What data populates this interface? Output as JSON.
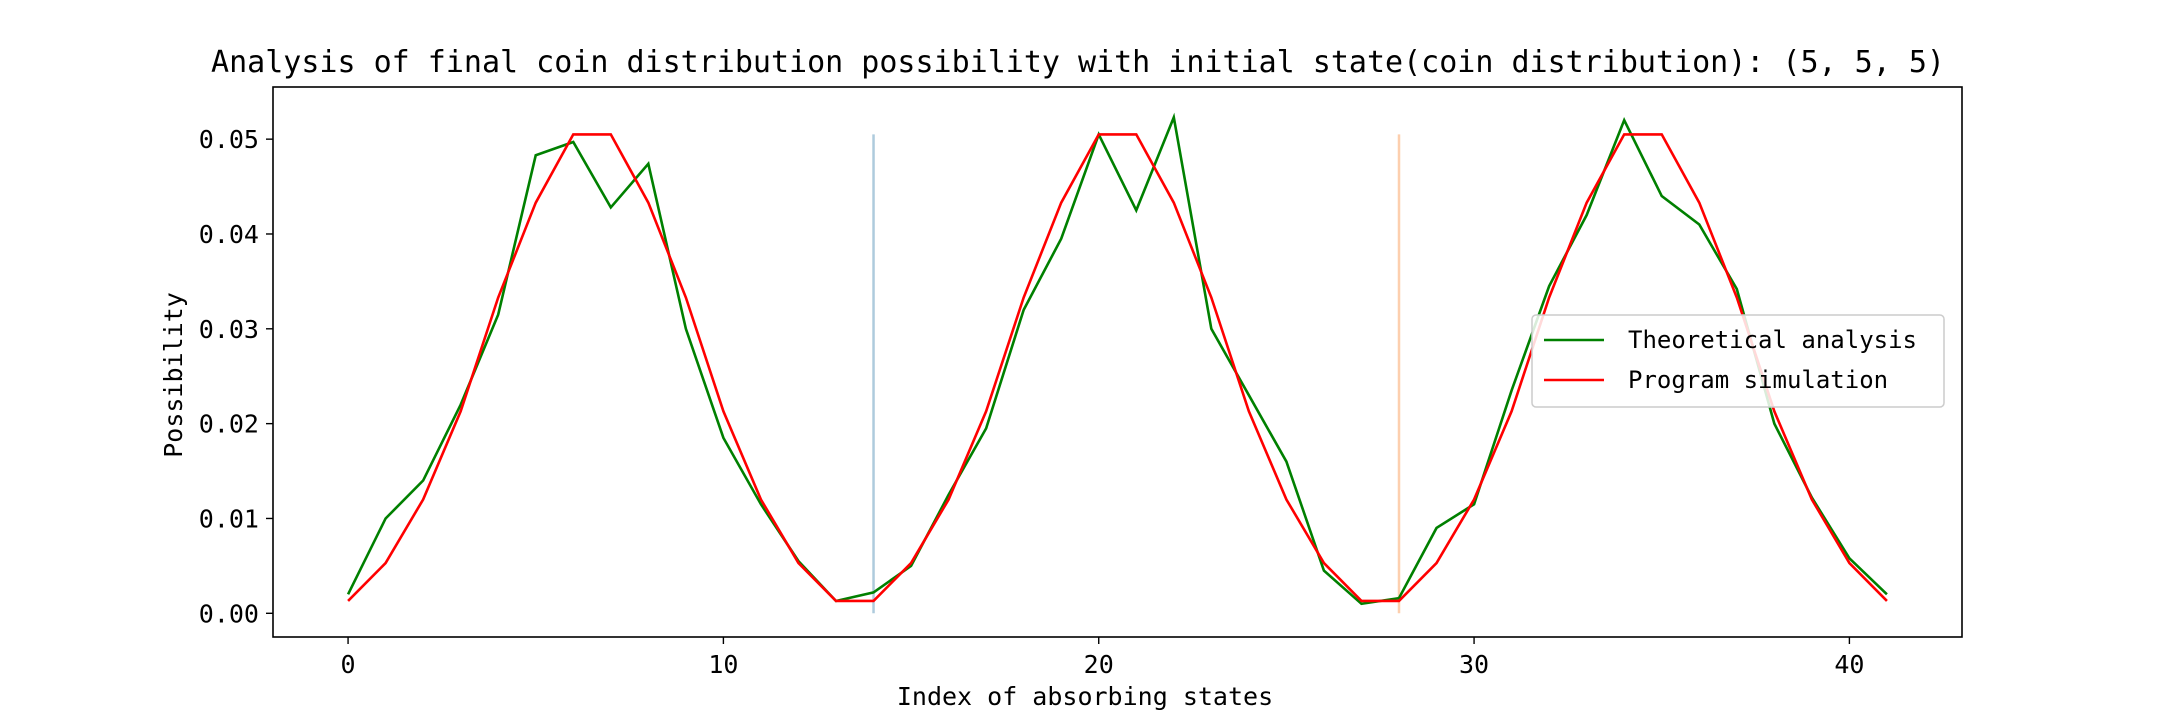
{
  "chart_data": {
    "type": "line",
    "title": "Analysis of final coin distribution possibility with initial state(coin distribution): (5, 5, 5)",
    "xlabel": "Index of absorbing states",
    "ylabel": "Possibility",
    "xlim": [
      -2,
      43
    ],
    "ylim": [
      -0.0025,
      0.0555
    ],
    "xticks": [
      0,
      10,
      20,
      30,
      40
    ],
    "xtick_labels": [
      "0",
      "10",
      "20",
      "30",
      "40"
    ],
    "yticks": [
      0.0,
      0.01,
      0.02,
      0.03,
      0.04,
      0.05
    ],
    "ytick_labels": [
      "0.00",
      "0.01",
      "0.02",
      "0.03",
      "0.04",
      "0.05"
    ],
    "legend_position": "center-right",
    "grid": false,
    "x": [
      0,
      1,
      2,
      3,
      4,
      5,
      6,
      7,
      8,
      9,
      10,
      11,
      12,
      13,
      14,
      15,
      16,
      17,
      18,
      19,
      20,
      21,
      22,
      23,
      24,
      25,
      26,
      27,
      28,
      29,
      30,
      31,
      32,
      33,
      34,
      35,
      36,
      37,
      38,
      39,
      40,
      41
    ],
    "series": [
      {
        "name": "Theoretical analysis",
        "color": "#008000",
        "values": [
          0.002,
          0.01,
          0.014,
          0.022,
          0.0315,
          0.0483,
          0.0497,
          0.0428,
          0.0474,
          0.03,
          0.0185,
          0.0115,
          0.0055,
          0.0013,
          0.0022,
          0.005,
          0.0125,
          0.0195,
          0.032,
          0.0395,
          0.0505,
          0.0425,
          0.0523,
          0.03,
          0.023,
          0.016,
          0.0045,
          0.001,
          0.0016,
          0.009,
          0.0115,
          0.0235,
          0.0345,
          0.042,
          0.052,
          0.044,
          0.041,
          0.0342,
          0.02,
          0.0122,
          0.0058,
          0.002
        ]
      },
      {
        "name": "Program simulation",
        "color": "#ff0000",
        "values": [
          0.0013,
          0.0053,
          0.012,
          0.0213,
          0.0333,
          0.0433,
          0.0505,
          0.0505,
          0.0433,
          0.0333,
          0.0213,
          0.012,
          0.0053,
          0.0013,
          0.0013,
          0.0053,
          0.012,
          0.0213,
          0.0333,
          0.0433,
          0.0505,
          0.0505,
          0.0433,
          0.0333,
          0.0213,
          0.012,
          0.0053,
          0.0013,
          0.0013,
          0.0053,
          0.012,
          0.0213,
          0.0333,
          0.0433,
          0.0505,
          0.0505,
          0.0433,
          0.0333,
          0.0213,
          0.012,
          0.0053,
          0.0013
        ]
      }
    ],
    "vertical_lines": [
      {
        "x": 14,
        "ymin": 0.0,
        "ymax": 0.0505,
        "color": "#aecbdd"
      },
      {
        "x": 28,
        "ymin": 0.0,
        "ymax": 0.0505,
        "color": "#fdcfae"
      }
    ]
  }
}
